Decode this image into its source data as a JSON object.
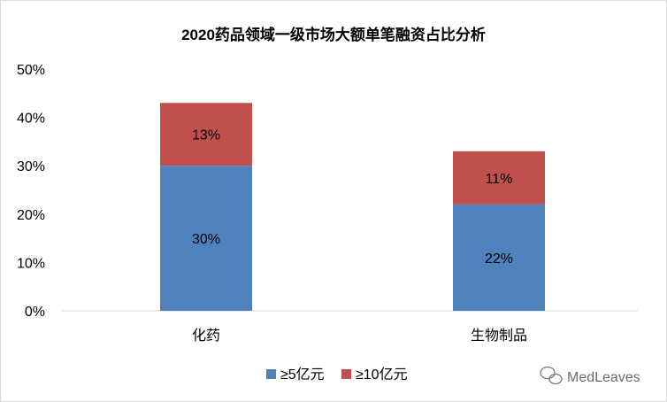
{
  "chart_data": {
    "type": "bar",
    "stacked": true,
    "title": "2020药品领域一级市场大额单笔融资占比分析",
    "categories": [
      "化药",
      "生物制品"
    ],
    "series": [
      {
        "name": "≥5亿元",
        "values": [
          30,
          22
        ],
        "labels": [
          "30%",
          "22%"
        ],
        "color": "#4f81bd"
      },
      {
        "name": "≥10亿元",
        "values": [
          13,
          11
        ],
        "labels": [
          "13%",
          "11%"
        ],
        "color": "#c0504d"
      }
    ],
    "ylim": [
      0,
      50
    ],
    "yticks": [
      "0%",
      "10%",
      "20%",
      "30%",
      "40%",
      "50%"
    ],
    "legend_position": "bottom",
    "grid": false
  },
  "watermark": {
    "text": "MedLeaves",
    "icon": "wechat-icon"
  }
}
